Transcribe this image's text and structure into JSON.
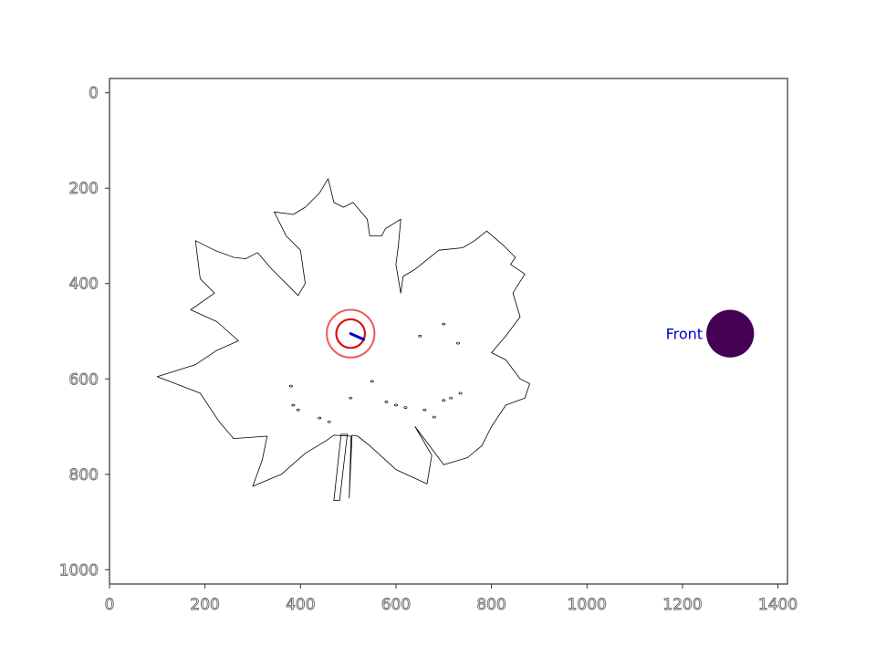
{
  "chart_data": {
    "type": "scatter",
    "title": "",
    "xlabel": "",
    "ylabel": "",
    "xlim": [
      0,
      1420
    ],
    "ylim": [
      1030,
      -30
    ],
    "y_inverted": true,
    "grid": false,
    "x_ticks": [
      "0",
      "200",
      "400",
      "600",
      "800",
      "1000",
      "1200",
      "1400"
    ],
    "y_ticks": [
      "0",
      "200",
      "400",
      "600",
      "800",
      "1000"
    ],
    "leaf_outline": [
      [
        502,
        850
      ],
      [
        506,
        720
      ],
      [
        470,
        718
      ],
      [
        453,
        730
      ],
      [
        410,
        756
      ],
      [
        360,
        800
      ],
      [
        300,
        825
      ],
      [
        320,
        770
      ],
      [
        330,
        720
      ],
      [
        260,
        725
      ],
      [
        230,
        690
      ],
      [
        190,
        630
      ],
      [
        100,
        595
      ],
      [
        180,
        570
      ],
      [
        225,
        540
      ],
      [
        270,
        520
      ],
      [
        225,
        480
      ],
      [
        170,
        455
      ],
      [
        220,
        420
      ],
      [
        190,
        390
      ],
      [
        180,
        310
      ],
      [
        220,
        330
      ],
      [
        260,
        345
      ],
      [
        285,
        348
      ],
      [
        310,
        335
      ],
      [
        340,
        370
      ],
      [
        370,
        400
      ],
      [
        395,
        425
      ],
      [
        410,
        400
      ],
      [
        400,
        330
      ],
      [
        370,
        300
      ],
      [
        345,
        250
      ],
      [
        385,
        255
      ],
      [
        410,
        240
      ],
      [
        440,
        210
      ],
      [
        458,
        180
      ],
      [
        470,
        230
      ],
      [
        490,
        240
      ],
      [
        510,
        230
      ],
      [
        540,
        265
      ],
      [
        545,
        300
      ],
      [
        570,
        300
      ],
      [
        578,
        285
      ],
      [
        610,
        265
      ],
      [
        605,
        320
      ],
      [
        600,
        360
      ],
      [
        610,
        420
      ],
      [
        615,
        385
      ],
      [
        640,
        370
      ],
      [
        690,
        330
      ],
      [
        740,
        325
      ],
      [
        765,
        310
      ],
      [
        790,
        290
      ],
      [
        825,
        320
      ],
      [
        850,
        345
      ],
      [
        840,
        360
      ],
      [
        870,
        380
      ],
      [
        845,
        420
      ],
      [
        860,
        470
      ],
      [
        830,
        510
      ],
      [
        800,
        545
      ],
      [
        830,
        560
      ],
      [
        860,
        600
      ],
      [
        880,
        610
      ],
      [
        870,
        640
      ],
      [
        830,
        655
      ],
      [
        800,
        700
      ],
      [
        780,
        740
      ],
      [
        750,
        765
      ],
      [
        700,
        780
      ],
      [
        640,
        700
      ],
      [
        675,
        760
      ],
      [
        665,
        820
      ],
      [
        600,
        790
      ],
      [
        545,
        740
      ],
      [
        520,
        720
      ],
      [
        508,
        718
      ],
      [
        502,
        850
      ]
    ],
    "petiole": [
      [
        485,
        716
      ],
      [
        470,
        855
      ],
      [
        482,
        855
      ],
      [
        498,
        716
      ]
    ],
    "holes": [
      [
        380,
        615
      ],
      [
        385,
        655
      ],
      [
        395,
        665
      ],
      [
        440,
        682
      ],
      [
        460,
        690
      ],
      [
        505,
        640
      ],
      [
        550,
        605
      ],
      [
        580,
        648
      ],
      [
        600,
        655
      ],
      [
        620,
        660
      ],
      [
        660,
        665
      ],
      [
        680,
        680
      ],
      [
        700,
        645
      ],
      [
        715,
        640
      ],
      [
        735,
        630
      ],
      [
        650,
        510
      ],
      [
        700,
        485
      ],
      [
        730,
        525
      ]
    ],
    "target": {
      "x": 505,
      "y": 505,
      "inner_radius": 30,
      "outer_radius": 50,
      "direction_deg": 24,
      "arrow_length": 30
    },
    "front_marker": {
      "label": "Front",
      "x": 1300,
      "y": 505,
      "radius": 50
    },
    "colors": {
      "background": "#ffffff",
      "leaf_edge": "#000000",
      "inner_ring": "#dd1111",
      "outer_ring": "#ef5a5a",
      "arrow": "#0000cc",
      "front_marker": "#440154",
      "front_label": "#0000cc",
      "axis": "#333333",
      "tick_label_stroke": "#666666"
    }
  }
}
